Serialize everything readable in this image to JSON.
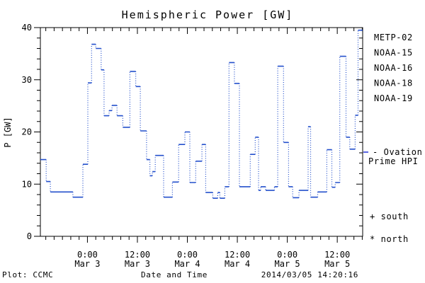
{
  "title": "Hemispheric Power [GW]",
  "footer": {
    "left": "Plot: CCMC",
    "right": "2014/03/05 14:20:16"
  },
  "legend": {
    "satellites": [
      {
        "label": "METP-02",
        "color": "#000000"
      },
      {
        "label": "NOAA-15",
        "color": "#2222df"
      },
      {
        "label": "NOAA-16",
        "color": "#38c6f2"
      },
      {
        "label": "NOAA-18",
        "color": "#7ae98e"
      },
      {
        "label": "NOAA-19",
        "color": "#f4a63c"
      }
    ],
    "line_label_line1": "- Ovation",
    "line_label_line2": "Prime HPI",
    "line_label_color": "#2433d9",
    "south_marker": "+ south",
    "north_marker": "* north"
  },
  "chart_data": {
    "type": "line",
    "subtype": "step",
    "title": "Hemispheric Power [GW]",
    "xlabel": "Date and Time",
    "ylabel": "P [GW]",
    "ylim": [
      0,
      40
    ],
    "yticks": [
      0,
      10,
      20,
      30,
      40
    ],
    "y_minor_step_gw": 2,
    "grid": false,
    "line_color": "#2450cc",
    "x_hours_total": 77.4,
    "x_minor_step_hours": 2,
    "x_minor_phase_hours": 1.3,
    "x_major_ticks": [
      {
        "t": 11.3,
        "time": "0:00",
        "date": "Mar 3"
      },
      {
        "t": 23.3,
        "time": "12:00",
        "date": "Mar 3"
      },
      {
        "t": 35.3,
        "time": "0:00",
        "date": "Mar 4"
      },
      {
        "t": 47.3,
        "time": "12:00",
        "date": "Mar 4"
      },
      {
        "t": 59.3,
        "time": "0:00",
        "date": "Mar 5"
      },
      {
        "t": 71.3,
        "time": "12:00",
        "date": "Mar 5"
      }
    ],
    "series": [
      {
        "name": "Ovation Prime HPI",
        "units": "GW",
        "t_end": 77.4,
        "points": [
          [
            0.0,
            14.7
          ],
          [
            1.4,
            10.5
          ],
          [
            2.4,
            8.5
          ],
          [
            7.8,
            7.5
          ],
          [
            10.2,
            13.8
          ],
          [
            11.4,
            29.4
          ],
          [
            12.3,
            36.8
          ],
          [
            13.3,
            36.0
          ],
          [
            14.6,
            31.9
          ],
          [
            15.3,
            23.1
          ],
          [
            16.5,
            24.1
          ],
          [
            17.2,
            25.1
          ],
          [
            18.4,
            23.1
          ],
          [
            19.8,
            20.9
          ],
          [
            21.5,
            31.6
          ],
          [
            22.9,
            28.7
          ],
          [
            24.0,
            20.2
          ],
          [
            25.5,
            14.7
          ],
          [
            26.3,
            11.6
          ],
          [
            26.9,
            12.4
          ],
          [
            27.6,
            15.5
          ],
          [
            29.6,
            7.5
          ],
          [
            31.7,
            10.4
          ],
          [
            33.2,
            17.6
          ],
          [
            34.7,
            20.0
          ],
          [
            35.9,
            10.3
          ],
          [
            37.3,
            14.4
          ],
          [
            38.8,
            17.6
          ],
          [
            39.7,
            8.4
          ],
          [
            41.4,
            7.3
          ],
          [
            42.6,
            8.4
          ],
          [
            43.1,
            7.3
          ],
          [
            44.3,
            9.5
          ],
          [
            45.3,
            33.3
          ],
          [
            46.6,
            29.3
          ],
          [
            47.8,
            9.5
          ],
          [
            50.4,
            15.7
          ],
          [
            51.6,
            19.0
          ],
          [
            52.4,
            8.8
          ],
          [
            52.9,
            9.5
          ],
          [
            54.1,
            8.8
          ],
          [
            56.2,
            9.5
          ],
          [
            57.0,
            32.6
          ],
          [
            58.4,
            18.0
          ],
          [
            59.6,
            9.5
          ],
          [
            60.6,
            7.4
          ],
          [
            62.1,
            8.8
          ],
          [
            64.3,
            21.0
          ],
          [
            64.9,
            7.5
          ],
          [
            66.6,
            8.5
          ],
          [
            68.8,
            16.6
          ],
          [
            70.0,
            9.4
          ],
          [
            70.8,
            10.3
          ],
          [
            71.9,
            34.5
          ],
          [
            73.4,
            19.0
          ],
          [
            74.3,
            16.7
          ],
          [
            75.6,
            23.2
          ],
          [
            76.3,
            39.5
          ]
        ]
      }
    ]
  }
}
